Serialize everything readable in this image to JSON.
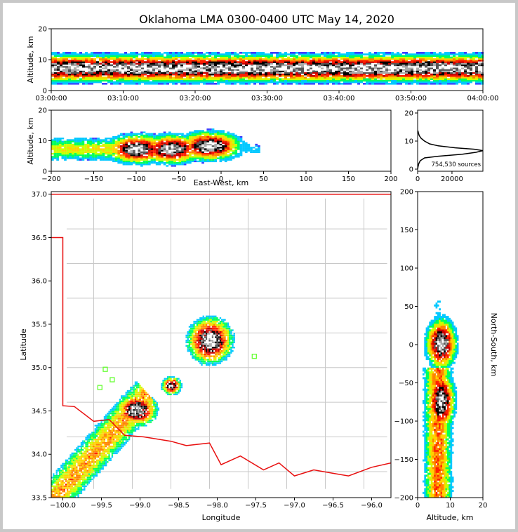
{
  "title": "Oklahoma LMA 0300-0400 UTC May 14, 2020",
  "colors": {
    "state_border": "#e81010",
    "county_lines": "#c8c8c8",
    "station_marker": "#66ff33",
    "frame_background": "#c8c8c8",
    "density_colormap": [
      "#3d3dff",
      "#00c8ff",
      "#00ff5a",
      "#c8ff00",
      "#ffd200",
      "#ff8200",
      "#ff1e00",
      "#c80000",
      "#000000",
      "#555555",
      "#aaaaaa",
      "#ffffff"
    ]
  },
  "chart_data": [
    {
      "id": "time_altitude",
      "type": "heatmap",
      "xlabel": "",
      "ylabel": "Altitude, km",
      "xlim": [
        "03:00:00",
        "04:00:00"
      ],
      "ylim": [
        0,
        20
      ],
      "xticks": [
        "03:00:00",
        "03:10:00",
        "03:20:00",
        "03:30:00",
        "03:40:00",
        "03:50:00",
        "04:00:00"
      ],
      "yticks": [
        "0",
        "10",
        "20"
      ],
      "core_altitude_km": 7
    },
    {
      "id": "ew_altitude",
      "type": "heatmap",
      "xlabel": "East-West, km",
      "ylabel": "Altitude, km",
      "xlim": [
        -200,
        200
      ],
      "ylim": [
        0,
        20
      ],
      "xticks": [
        "-200",
        "-150",
        "-100",
        "-50",
        "0",
        "50",
        "100",
        "150",
        "200"
      ],
      "yticks": [
        "0",
        "10",
        "20"
      ],
      "cores": [
        {
          "x": -100,
          "alt": 7
        },
        {
          "x": -60,
          "alt": 7
        },
        {
          "x": -15,
          "alt": 8
        }
      ]
    },
    {
      "id": "altitude_histogram",
      "type": "line",
      "xlabel": "",
      "ylabel": "",
      "xlim": [
        0,
        38000
      ],
      "ylim": [
        0,
        20
      ],
      "xticks": [
        "0",
        "20000"
      ],
      "yticks": [
        "0",
        "10",
        "20"
      ],
      "annotation": "754,530 sources",
      "points": [
        [
          0,
          0
        ],
        [
          300,
          1
        ],
        [
          700,
          2
        ],
        [
          1500,
          3
        ],
        [
          4000,
          4
        ],
        [
          12000,
          4.6
        ],
        [
          26000,
          5.3
        ],
        [
          34000,
          6
        ],
        [
          38000,
          6.6
        ],
        [
          33000,
          7.1
        ],
        [
          22000,
          7.6
        ],
        [
          12000,
          8.3
        ],
        [
          7000,
          9
        ],
        [
          4000,
          10
        ],
        [
          2000,
          11
        ],
        [
          900,
          12
        ],
        [
          400,
          13
        ],
        [
          150,
          13.7
        ]
      ]
    },
    {
      "id": "plan_view",
      "type": "heatmap",
      "xlabel": "Longitude",
      "ylabel": "Latitude",
      "xlim": [
        -100.15,
        -95.75
      ],
      "ylim": [
        33.5,
        37.03
      ],
      "xticks": [
        "-100.0",
        "-99.5",
        "-99.0",
        "-98.5",
        "-98.0",
        "-97.5",
        "-97.0",
        "-96.5",
        "-96.0"
      ],
      "yticks": [
        "33.5",
        "34.0",
        "34.5",
        "35.0",
        "35.5",
        "36.0",
        "36.5",
        "37.0"
      ],
      "stations": [
        [
          -99.45,
          34.98
        ],
        [
          -99.36,
          34.86
        ],
        [
          -99.52,
          34.77
        ],
        [
          -97.52,
          35.13
        ]
      ],
      "storm_cores": [
        {
          "lon": -98.1,
          "lat": 35.3
        },
        {
          "lon": -99.05,
          "lat": 34.5
        },
        {
          "lon": -98.6,
          "lat": 34.78
        }
      ]
    },
    {
      "id": "ns_altitude",
      "type": "heatmap",
      "xlabel": "Altitude, km",
      "ylabel": "North-South, km",
      "xlim": [
        0,
        20
      ],
      "ylim": [
        -200,
        200
      ],
      "xticks": [
        "0",
        "10",
        "20"
      ],
      "yticks": [
        "-200",
        "-150",
        "-100",
        "-50",
        "0",
        "50",
        "100",
        "150",
        "200"
      ]
    }
  ]
}
